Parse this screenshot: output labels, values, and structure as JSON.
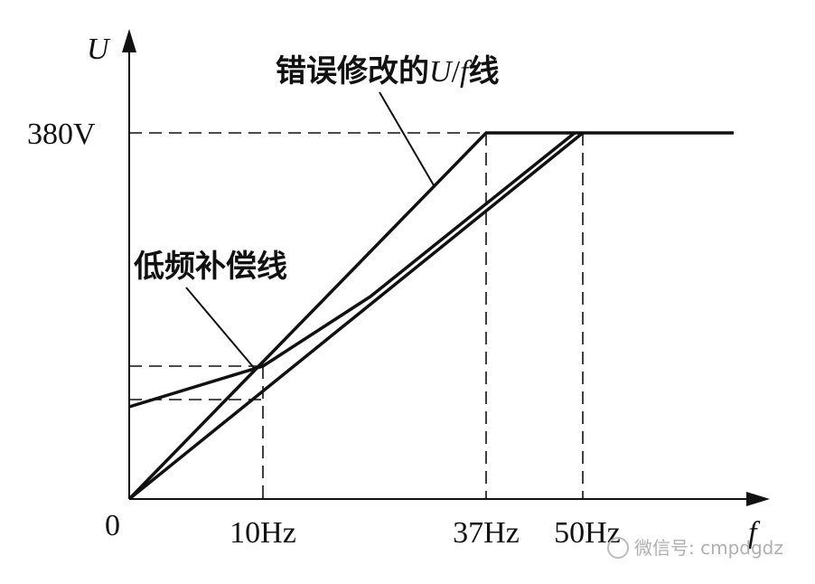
{
  "axes": {
    "y_label": "U",
    "x_label": "f",
    "origin": "0"
  },
  "y_marks": [
    "380V"
  ],
  "x_marks": [
    "10Hz",
    "37Hz",
    "50Hz"
  ],
  "callouts": [
    {
      "parts": [
        "错误修改的",
        "U",
        "/",
        "f",
        "线"
      ]
    },
    {
      "parts": [
        "低频补偿线"
      ]
    }
  ],
  "watermark": "微信号: cmpdgdz"
}
